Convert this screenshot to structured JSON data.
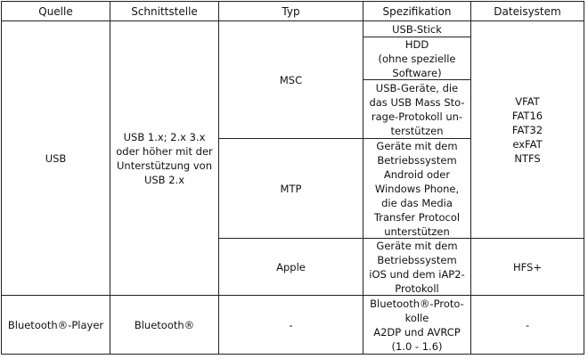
{
  "headers": [
    "Quelle",
    "Schnittstelle",
    "Typ",
    "Spezifikation",
    "Dateisystem"
  ],
  "usb": {
    "source": "USB",
    "interface": "USB 1.x; 2.x 3.x\noder höher mit der\nUnterstützung von\nUSB 2.x",
    "types": {
      "msc": "MSC",
      "mtp": "MTP",
      "apple": "Apple"
    },
    "specs": {
      "usb_stick": "USB-Stick",
      "hdd": "HDD\n(ohne spezielle\nSoftware)",
      "usb_mass": "USB-Geräte, die\ndas USB Mass Sto-\nrage-Protokoll un-\nterstützen",
      "mtp": "Geräte mit dem\nBetriebssystem\nAndroid oder\nWindows Phone,\ndie das Media\nTransfer Protocol\nunterstützen",
      "apple": "Geräte mit dem\nBetriebssystem\niOS und dem iAP2-\nProtokoll"
    },
    "filesystems": "VFAT\nFAT16\nFAT32\nexFAT\nNTFS",
    "apple_filesystem": "HFS+"
  },
  "bluetooth": {
    "source": "Bluetooth®-Player",
    "interface": "Bluetooth®",
    "type": "-",
    "spec": "Bluetooth®-Proto-\nkolle\nA2DP und AVRCP\n(1.0 - 1.6)",
    "filesystem": "-"
  }
}
